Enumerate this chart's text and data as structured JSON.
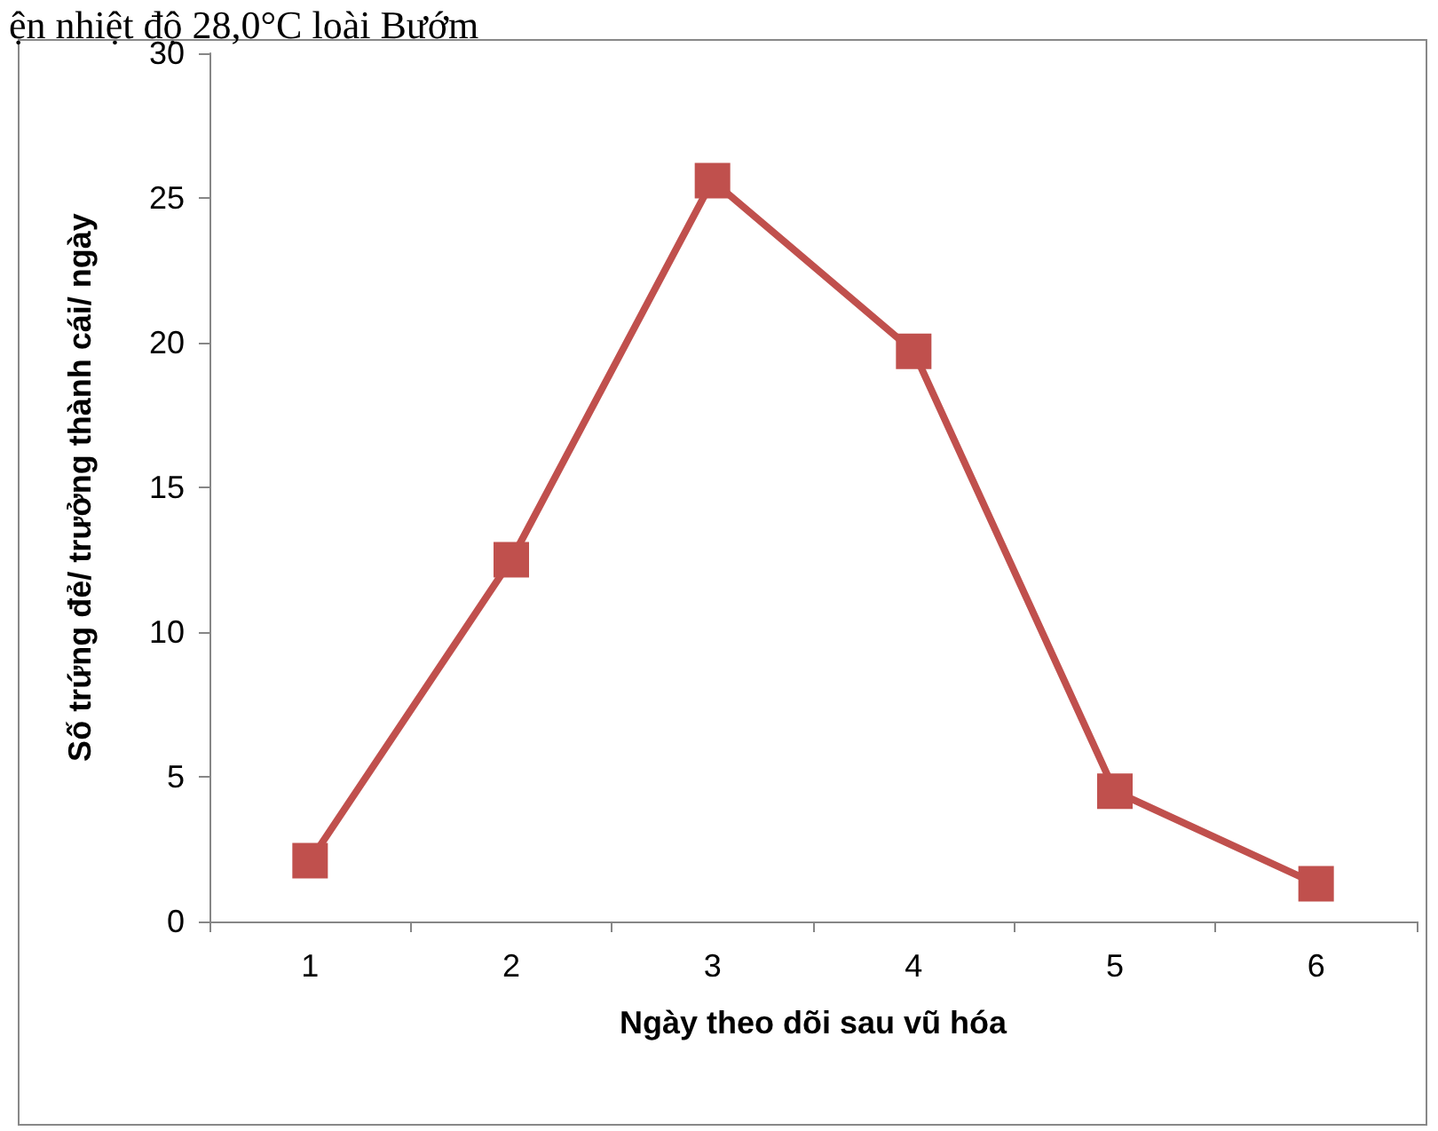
{
  "chart_data": {
    "type": "line",
    "title": "ện nhiệt độ 28,0°C loài Bướm",
    "xlabel": "Ngày theo dõi sau vũ hóa",
    "ylabel": "Số trứng đẻ/ trưởng thành cái/ ngày",
    "categories": [
      "1",
      "2",
      "3",
      "4",
      "5",
      "6"
    ],
    "series": [
      {
        "color": "#c0504d",
        "values": [
          2.1,
          12.5,
          25.6,
          19.7,
          4.5,
          1.3
        ]
      }
    ],
    "ylim": [
      0,
      30
    ],
    "yticks": [
      0,
      5,
      10,
      15,
      20,
      25,
      30
    ],
    "grid": false,
    "marker": "square",
    "line_style": "solid"
  }
}
